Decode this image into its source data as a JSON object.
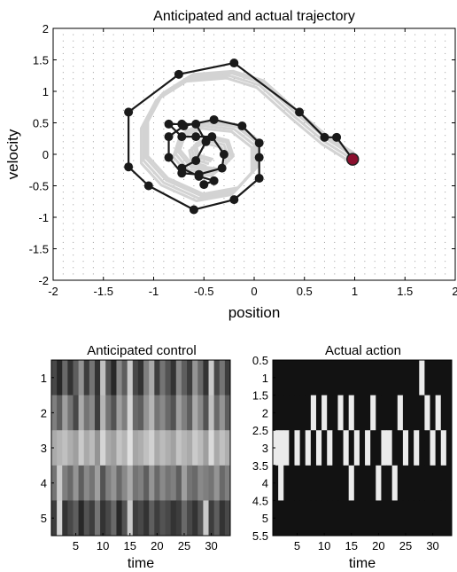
{
  "chart_data": [
    {
      "type": "line",
      "title": "Anticipated and actual trajectory",
      "xlabel": "position",
      "ylabel": "velocity",
      "xlim": [
        -2,
        2
      ],
      "ylim": [
        -2,
        2
      ],
      "xticks": [
        -2,
        -1.5,
        -1,
        -0.5,
        0,
        0.5,
        1,
        1.5,
        2
      ],
      "yticks": [
        -2,
        -1.5,
        -1,
        -0.5,
        0,
        0.5,
        1,
        1.5,
        2
      ],
      "grid": "dotted",
      "colors": {
        "actual": "#1a1a1a",
        "anticipated": "#d3d3d3",
        "start": "#8b0f2e"
      },
      "series": [
        {
          "role": "actual",
          "points": [
            [
              0.98,
              -0.08
            ],
            [
              0.82,
              0.27
            ],
            [
              0.7,
              0.27
            ],
            [
              0.45,
              0.67
            ],
            [
              -0.2,
              1.45
            ],
            [
              -0.75,
              1.27
            ],
            [
              -1.25,
              0.67
            ],
            [
              -1.25,
              -0.2
            ],
            [
              -1.05,
              -0.5
            ],
            [
              -0.6,
              -0.88
            ],
            [
              -0.2,
              -0.72
            ],
            [
              0.05,
              -0.38
            ],
            [
              0.05,
              -0.05
            ],
            [
              0.05,
              0.18
            ],
            [
              -0.12,
              0.45
            ],
            [
              -0.4,
              0.55
            ],
            [
              -0.7,
              0.45
            ],
            [
              -0.85,
              0.28
            ],
            [
              -0.85,
              -0.05
            ],
            [
              -0.72,
              -0.3
            ],
            [
              -0.55,
              -0.32
            ],
            [
              -0.32,
              -0.22
            ],
            [
              -0.3,
              0.0
            ],
            [
              -0.42,
              0.28
            ],
            [
              -0.58,
              0.28
            ],
            [
              -0.72,
              0.28
            ],
            [
              -0.85,
              0.48
            ],
            [
              -0.72,
              0.48
            ],
            [
              -0.58,
              0.48
            ],
            [
              -0.48,
              0.2
            ],
            [
              -0.58,
              -0.1
            ],
            [
              -0.72,
              -0.22
            ],
            [
              -0.55,
              -0.35
            ],
            [
              -0.4,
              -0.42
            ],
            [
              -0.5,
              -0.48
            ]
          ]
        },
        {
          "role": "anticipated",
          "points": [
            [
              0.95,
              -0.05
            ],
            [
              0.7,
              0.2
            ],
            [
              0.4,
              0.6
            ],
            [
              0.05,
              1.1
            ],
            [
              -0.25,
              1.25
            ],
            [
              -0.65,
              1.2
            ],
            [
              -0.95,
              0.9
            ],
            [
              -1.1,
              0.45
            ],
            [
              -1.1,
              -0.1
            ],
            [
              -0.9,
              -0.45
            ],
            [
              -0.55,
              -0.7
            ],
            [
              -0.2,
              -0.6
            ],
            [
              0.0,
              -0.25
            ],
            [
              0.0,
              0.15
            ],
            [
              -0.2,
              0.4
            ],
            [
              -0.5,
              0.45
            ],
            [
              -0.72,
              0.3
            ],
            [
              -0.78,
              0.0
            ],
            [
              -0.65,
              -0.25
            ],
            [
              -0.4,
              -0.3
            ],
            [
              -0.25,
              -0.1
            ],
            [
              -0.3,
              0.15
            ],
            [
              -0.48,
              0.22
            ],
            [
              -0.62,
              0.1
            ],
            [
              -0.6,
              -0.08
            ],
            [
              -0.45,
              -0.15
            ]
          ]
        }
      ]
    },
    {
      "type": "heatmap",
      "title": "Anticipated control",
      "xlabel": "time",
      "ylabel": "",
      "xticks": [
        5,
        10,
        15,
        20,
        25,
        30
      ],
      "yticks": [
        1,
        2,
        3,
        4,
        5
      ],
      "rows": 5,
      "cols": 33,
      "values": [
        [
          0.25,
          0.1,
          0.4,
          0.15,
          0.35,
          0.6,
          0.2,
          0.45,
          0.15,
          0.8,
          0.3,
          0.1,
          0.55,
          0.35,
          0.85,
          0.25,
          0.15,
          0.5,
          0.7,
          0.2,
          0.45,
          0.3,
          0.15,
          0.55,
          0.35,
          0.2,
          0.6,
          0.4,
          0.15,
          0.85,
          0.25,
          0.45,
          0.2
        ],
        [
          0.5,
          0.35,
          0.65,
          0.45,
          0.25,
          0.7,
          0.45,
          0.55,
          0.2,
          0.75,
          0.45,
          0.3,
          0.65,
          0.5,
          0.9,
          0.4,
          0.35,
          0.6,
          0.75,
          0.45,
          0.55,
          0.4,
          0.3,
          0.65,
          0.5,
          0.35,
          0.7,
          0.55,
          0.3,
          0.8,
          0.4,
          0.6,
          0.35
        ],
        [
          0.7,
          0.75,
          0.8,
          0.72,
          0.65,
          0.85,
          0.7,
          0.78,
          0.6,
          0.9,
          0.7,
          0.65,
          0.82,
          0.75,
          0.95,
          0.68,
          0.72,
          0.8,
          0.88,
          0.7,
          0.78,
          0.72,
          0.66,
          0.82,
          0.75,
          0.7,
          0.85,
          0.78,
          0.65,
          0.92,
          0.7,
          0.8,
          0.72
        ],
        [
          0.45,
          0.85,
          0.5,
          0.4,
          0.6,
          0.35,
          0.55,
          0.45,
          0.65,
          0.3,
          0.5,
          0.6,
          0.4,
          0.55,
          0.7,
          0.45,
          0.5,
          0.35,
          0.6,
          0.4,
          0.55,
          0.45,
          0.5,
          0.35,
          0.65,
          0.45,
          0.4,
          0.55,
          0.5,
          0.45,
          0.6,
          0.4,
          0.5
        ],
        [
          0.2,
          0.9,
          0.15,
          0.25,
          0.35,
          0.1,
          0.3,
          0.2,
          0.45,
          0.15,
          0.25,
          0.4,
          0.1,
          0.3,
          0.85,
          0.2,
          0.25,
          0.15,
          0.35,
          0.2,
          0.3,
          0.25,
          0.15,
          0.2,
          0.4,
          0.25,
          0.15,
          0.3,
          0.85,
          0.2,
          0.35,
          0.15,
          0.25
        ]
      ]
    },
    {
      "type": "heatmap",
      "title": "Actual action",
      "xlabel": "time",
      "ylabel": "",
      "xticks": [
        5,
        10,
        15,
        20,
        25,
        30
      ],
      "yticks": [
        0.5,
        1,
        1.5,
        2,
        2.5,
        3,
        3.5,
        4,
        4.5,
        5,
        5.5
      ],
      "rows": 5,
      "cols": 33,
      "values": [
        [
          0,
          0,
          0,
          0,
          0,
          0,
          0,
          0,
          0,
          0,
          0,
          0,
          0,
          0,
          0,
          0,
          0,
          0,
          0,
          0,
          0,
          0,
          0,
          0,
          0,
          0,
          0,
          1,
          0,
          0,
          0,
          0,
          0
        ],
        [
          0,
          0,
          0,
          0,
          0,
          0,
          0,
          1,
          0,
          1,
          0,
          0,
          1,
          0,
          1,
          0,
          0,
          0,
          1,
          0,
          0,
          0,
          0,
          1,
          0,
          0,
          0,
          0,
          1,
          0,
          1,
          0,
          0
        ],
        [
          1,
          1,
          1,
          0,
          1,
          0,
          1,
          0,
          1,
          0,
          1,
          0,
          0,
          1,
          0,
          1,
          0,
          1,
          0,
          0,
          1,
          1,
          0,
          0,
          1,
          0,
          1,
          0,
          0,
          1,
          0,
          1,
          0
        ],
        [
          0,
          1,
          0,
          0,
          0,
          0,
          0,
          0,
          0,
          0,
          0,
          0,
          0,
          0,
          1,
          0,
          0,
          0,
          0,
          1,
          0,
          0,
          1,
          0,
          0,
          0,
          0,
          0,
          0,
          0,
          0,
          0,
          0
        ],
        [
          0,
          0,
          0,
          0,
          0,
          0,
          0,
          0,
          0,
          0,
          0,
          0,
          0,
          0,
          0,
          0,
          0,
          0,
          0,
          0,
          0,
          0,
          0,
          0,
          0,
          0,
          0,
          0,
          0,
          0,
          0,
          0,
          0
        ]
      ]
    }
  ]
}
